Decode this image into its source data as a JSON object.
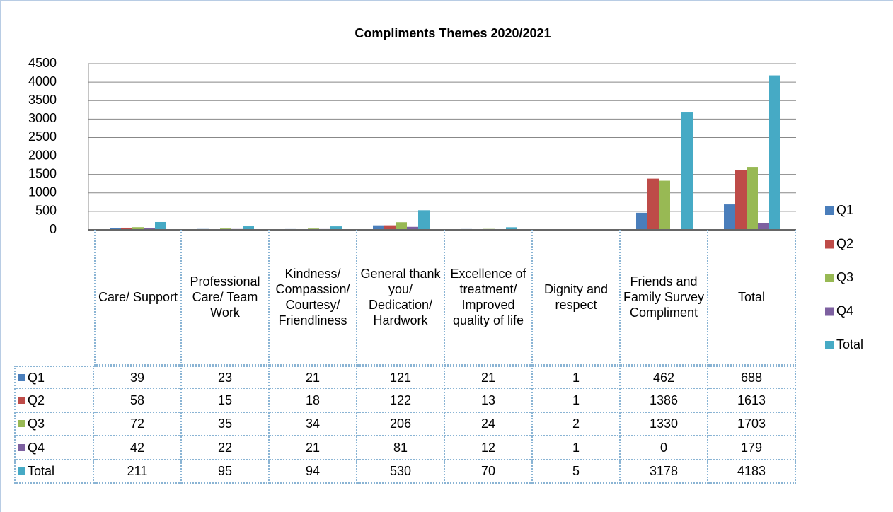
{
  "chart_data": {
    "type": "bar",
    "title": "Compliments Themes 2020/2021",
    "categories": [
      "Care/ Support",
      "Professional Care/ Team Work",
      "Kindness/ Compassion/ Courtesy/ Friendliness",
      "General thank you/ Dedication/ Hardwork",
      "Excellence of treatment/ Improved quality of life",
      "Dignity and respect",
      "Friends and Family Survey Compliment",
      "Total"
    ],
    "series": [
      {
        "name": "Q1",
        "color": "#4a7ebb",
        "values": [
          39,
          23,
          21,
          121,
          21,
          1,
          462,
          688
        ]
      },
      {
        "name": "Q2",
        "color": "#be4b48",
        "values": [
          58,
          15,
          18,
          122,
          13,
          1,
          1386,
          1613
        ]
      },
      {
        "name": "Q3",
        "color": "#98b954",
        "values": [
          72,
          35,
          34,
          206,
          24,
          2,
          1330,
          1703
        ]
      },
      {
        "name": "Q4",
        "color": "#7d60a0",
        "values": [
          42,
          22,
          21,
          81,
          12,
          1,
          0,
          179
        ]
      },
      {
        "name": "Total",
        "color": "#46aac5",
        "values": [
          211,
          95,
          94,
          530,
          70,
          5,
          3178,
          4183
        ]
      }
    ],
    "ylim": [
      0,
      4500
    ],
    "yticks": [
      0,
      500,
      1000,
      1500,
      2000,
      2500,
      3000,
      3500,
      4000,
      4500
    ],
    "grid": true,
    "legend": "right",
    "data_table": true
  }
}
